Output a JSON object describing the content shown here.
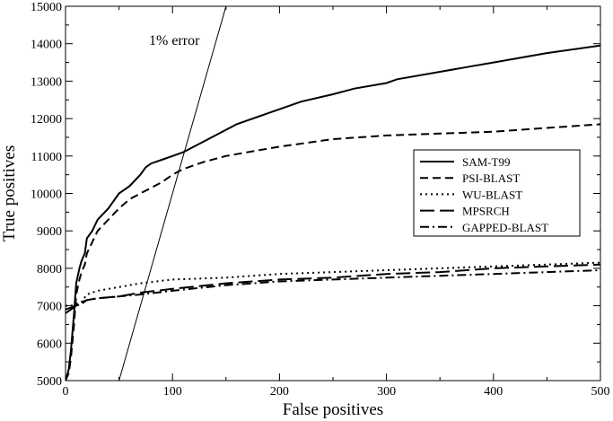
{
  "chart_data": {
    "type": "line",
    "title": "",
    "xlabel": "False positives",
    "ylabel": "True positives",
    "xlim": [
      0,
      500
    ],
    "ylim": [
      5000,
      15000
    ],
    "xticks": [
      0,
      100,
      200,
      300,
      400,
      500
    ],
    "yticks": [
      5000,
      6000,
      7000,
      8000,
      9000,
      10000,
      11000,
      12000,
      13000,
      14000,
      15000
    ],
    "grid": false,
    "legend_position": "right",
    "annotations": [
      {
        "text": "1% error",
        "line": {
          "x": [
            50,
            150
          ],
          "y": [
            5000,
            15000
          ]
        }
      }
    ],
    "series": [
      {
        "name": "SAM-T99",
        "style": "solid",
        "x": [
          0,
          3,
          5,
          8,
          10,
          13,
          15,
          18,
          20,
          25,
          30,
          40,
          50,
          60,
          70,
          75,
          80,
          90,
          100,
          110,
          120,
          130,
          150,
          160,
          170,
          180,
          190,
          200,
          220,
          250,
          270,
          300,
          310,
          350,
          380,
          400,
          450,
          500
        ],
        "y": [
          5000,
          5300,
          5800,
          6800,
          7600,
          8000,
          8200,
          8400,
          8800,
          9000,
          9300,
          9600,
          10000,
          10200,
          10500,
          10700,
          10800,
          10900,
          11000,
          11100,
          11250,
          11400,
          11700,
          11850,
          11950,
          12050,
          12150,
          12250,
          12450,
          12650,
          12800,
          12950,
          13050,
          13250,
          13400,
          13500,
          13750,
          13950
        ]
      },
      {
        "name": "PSI-BLAST",
        "style": "dashed",
        "x": [
          0,
          3,
          5,
          8,
          10,
          13,
          15,
          18,
          20,
          25,
          30,
          40,
          50,
          60,
          70,
          80,
          90,
          100,
          110,
          120,
          130,
          150,
          180,
          200,
          250,
          300,
          350,
          400,
          450,
          500
        ],
        "y": [
          5000,
          5200,
          5600,
          6500,
          7300,
          7700,
          7900,
          8100,
          8400,
          8700,
          9000,
          9300,
          9600,
          9850,
          10000,
          10150,
          10300,
          10500,
          10650,
          10750,
          10850,
          11000,
          11150,
          11250,
          11450,
          11550,
          11600,
          11650,
          11750,
          11850
        ]
      },
      {
        "name": "WU-BLAST",
        "style": "dotted",
        "x": [
          0,
          5,
          10,
          15,
          20,
          30,
          50,
          70,
          100,
          150,
          200,
          250,
          300,
          350,
          400,
          450,
          500
        ],
        "y": [
          7000,
          7000,
          7050,
          7100,
          7300,
          7400,
          7500,
          7600,
          7700,
          7750,
          7850,
          7900,
          7950,
          8000,
          8050,
          8100,
          8150
        ]
      },
      {
        "name": "MPSRCH",
        "style": "longdash",
        "x": [
          0,
          5,
          10,
          15,
          20,
          30,
          50,
          70,
          100,
          150,
          200,
          250,
          300,
          350,
          400,
          450,
          500
        ],
        "y": [
          6800,
          6900,
          7000,
          7100,
          7150,
          7200,
          7250,
          7350,
          7450,
          7600,
          7700,
          7750,
          7850,
          7900,
          8000,
          8050,
          8100
        ]
      },
      {
        "name": "GAPPED-BLAST",
        "style": "dashdot",
        "x": [
          0,
          5,
          10,
          15,
          20,
          30,
          50,
          70,
          100,
          150,
          200,
          250,
          300,
          350,
          400,
          450,
          500
        ],
        "y": [
          6900,
          6950,
          7000,
          7050,
          7150,
          7200,
          7250,
          7300,
          7400,
          7550,
          7650,
          7700,
          7750,
          7800,
          7850,
          7900,
          7950
        ]
      }
    ]
  }
}
